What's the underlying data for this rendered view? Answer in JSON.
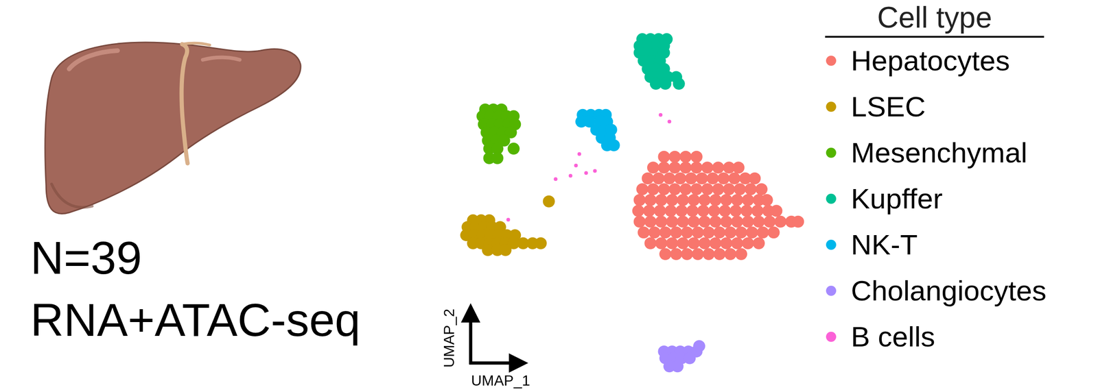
{
  "chart_data": {
    "type": "scatter",
    "x_label": "UMAP_1",
    "y_label": "UMAP_2",
    "legend_title": "Cell type",
    "legend": "right",
    "annotations": [
      "N=39",
      "RNA+ATAC-seq"
    ],
    "xlim": [
      640,
      1160
    ],
    "ylim": [
      0,
      520
    ],
    "tick_labels": false,
    "grid": false,
    "series": [
      {
        "name": "Hepatocytes",
        "color": "#F8766D",
        "x": [
          950,
          966,
          982,
          998,
          934,
          950,
          966,
          982,
          998,
          1014,
          1030,
          1046,
          1060,
          926,
          942,
          958,
          974,
          990,
          1006,
          1022,
          1038,
          1054,
          1070,
          1084,
          918,
          934,
          950,
          966,
          982,
          998,
          1014,
          1030,
          1046,
          1062,
          1078,
          1094,
          914,
          930,
          946,
          962,
          978,
          994,
          1010,
          1026,
          1042,
          1058,
          1074,
          1090,
          1102,
          912,
          928,
          944,
          960,
          976,
          992,
          1008,
          1024,
          1040,
          1056,
          1072,
          1088,
          1104,
          1116,
          914,
          930,
          946,
          962,
          978,
          994,
          1010,
          1026,
          1042,
          1058,
          1074,
          1090,
          1106,
          1122,
          1138,
          1148,
          920,
          936,
          952,
          968,
          984,
          1000,
          1016,
          1032,
          1048,
          1064,
          1080,
          1096,
          1112,
          930,
          946,
          962,
          978,
          994,
          1010,
          1026,
          1042,
          1058,
          1074,
          1090,
          952,
          968,
          984,
          1000,
          1016,
          1032,
          1048,
          1064
        ],
        "values": [
          333,
          333,
          333,
          333,
          317,
          317,
          317,
          317,
          317,
          317,
          317,
          317,
          317,
          301,
          301,
          301,
          301,
          301,
          301,
          301,
          301,
          301,
          301,
          301,
          285,
          285,
          285,
          285,
          285,
          285,
          285,
          285,
          285,
          285,
          285,
          285,
          269,
          269,
          269,
          269,
          269,
          269,
          269,
          269,
          269,
          269,
          269,
          269,
          269,
          253,
          253,
          253,
          253,
          253,
          253,
          253,
          253,
          253,
          253,
          253,
          253,
          253,
          253,
          237,
          237,
          237,
          237,
          237,
          237,
          237,
          237,
          237,
          237,
          237,
          237,
          237,
          237,
          237,
          237,
          221,
          221,
          221,
          221,
          221,
          221,
          221,
          221,
          221,
          221,
          221,
          221,
          221,
          205,
          205,
          205,
          205,
          205,
          205,
          205,
          205,
          205,
          205,
          205,
          189,
          189,
          189,
          189,
          189,
          189,
          189,
          189
        ]
      },
      {
        "name": "LSEC",
        "color": "#C49A00",
        "x": [
          668,
          680,
          692,
          660,
          672,
          684,
          696,
          708,
          658,
          670,
          682,
          694,
          706,
          718,
          730,
          668,
          680,
          692,
          704,
          716,
          728,
          742,
          756,
          768,
          690,
          704,
          716,
          780
        ],
        "values": [
          239,
          239,
          239,
          229,
          229,
          229,
          229,
          229,
          217,
          217,
          217,
          217,
          217,
          217,
          217,
          205,
          205,
          205,
          205,
          205,
          205,
          205,
          205,
          205,
          195,
          195,
          195,
          267
        ]
      },
      {
        "name": "Mesenchymal",
        "color": "#53B400",
        "x": [
          686,
          698,
          710,
          682,
          694,
          706,
          718,
          728,
          684,
          696,
          708,
          720,
          730,
          688,
          700,
          712,
          724,
          690,
          702,
          714,
          692,
          704,
          728,
          692,
          704
        ],
        "values": [
          403,
          403,
          403,
          393,
          393,
          393,
          393,
          393,
          381,
          381,
          381,
          381,
          381,
          369,
          369,
          369,
          369,
          357,
          357,
          357,
          345,
          345,
          345,
          331,
          331
        ]
      },
      {
        "name": "Kupffer",
        "color": "#00C094",
        "x": [
          918,
          930,
          942,
          954,
          914,
          926,
          938,
          950,
          914,
          926,
          938,
          950,
          920,
          932,
          944,
          926,
          938,
          950,
          930,
          942,
          956,
          968,
          938,
          952,
          972
        ],
        "values": [
          507,
          507,
          507,
          507,
          497,
          497,
          497,
          497,
          487,
          487,
          487,
          487,
          475,
          475,
          475,
          463,
          463,
          463,
          451,
          451,
          451,
          451,
          441,
          441,
          441
        ]
      },
      {
        "name": "NK-T",
        "color": "#00B6EB",
        "x": [
          830,
          842,
          854,
          864,
          828,
          840,
          856,
          866,
          850,
          862,
          872,
          858,
          870,
          866,
          876
        ],
        "values": [
          395,
          395,
          395,
          395,
          385,
          385,
          385,
          385,
          373,
          373,
          373,
          361,
          361,
          350,
          350
        ]
      },
      {
        "name": "Cholangiocytes",
        "color": "#A58AFF",
        "x": [
          950,
          962,
          974,
          986,
          998,
          952,
          964,
          976,
          988,
          958,
          970,
          1002
        ],
        "values": [
          45,
          45,
          45,
          45,
          45,
          35,
          35,
          35,
          35,
          23,
          23,
          53
        ]
      },
      {
        "name": "B cells",
        "color": "#FB61D7",
        "x": [
          825,
          820,
          848,
          835,
          812,
          790,
          720,
          945,
          958
        ],
        "values": [
          337,
          320,
          312,
          309,
          305,
          300,
          240,
          395,
          385
        ]
      }
    ]
  }
}
